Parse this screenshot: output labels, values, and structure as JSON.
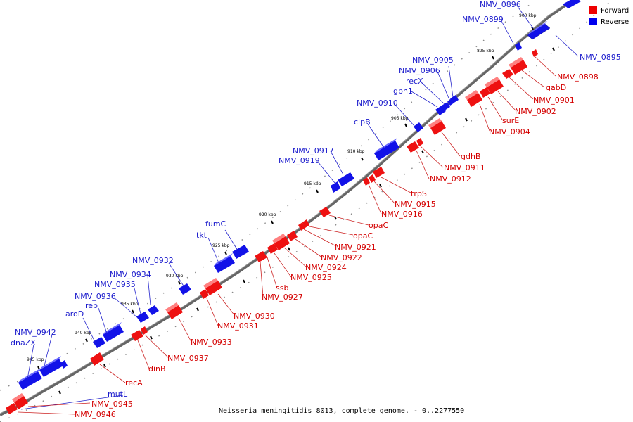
{
  "caption": "Neisseria meningitidis 8013, complete genome. - 0..2277550",
  "legend": {
    "forward": {
      "label": "Forward",
      "color": "#ee0000"
    },
    "reverse": {
      "label": "Reverse",
      "color": "#0000ee"
    }
  },
  "ticks": [
    "895 kbp",
    "900 kbp",
    "905 kbp",
    "910 kbp",
    "915 kbp",
    "920 kbp",
    "925 kbp",
    "930 kbp",
    "935 kbp",
    "940 kbp",
    "945 kbp"
  ],
  "reverse_labels": [
    "NMV_0896",
    "NMV_0899",
    "NMV_0895",
    "NMV_0905",
    "NMV_0906",
    "recX",
    "gph1",
    "NMV_0910",
    "clpB",
    "NMV_0917",
    "NMV_0919",
    "fumC",
    "tkt",
    "NMV_0932",
    "NMV_0934",
    "NMV_0935",
    "NMV_0936",
    "rep",
    "aroD",
    "NMV_0942",
    "dnaZX",
    "mutL"
  ],
  "forward_labels": [
    "NMV_0898",
    "gabD",
    "NMV_0901",
    "NMV_0902",
    "surE",
    "NMV_0904",
    "gdhB",
    "NMV_0911",
    "NMV_0912",
    "trpS",
    "NMV_0915",
    "NMV_0916",
    "opaC",
    "opaC",
    "NMV_0921",
    "NMV_0922",
    "NMV_0924",
    "NMV_0925",
    "ssb",
    "NMV_0927",
    "NMV_0930",
    "NMV_0931",
    "NMV_0933",
    "NMV_0937",
    "dinB",
    "recA",
    "NMV_0945",
    "NMV_0946"
  ]
}
